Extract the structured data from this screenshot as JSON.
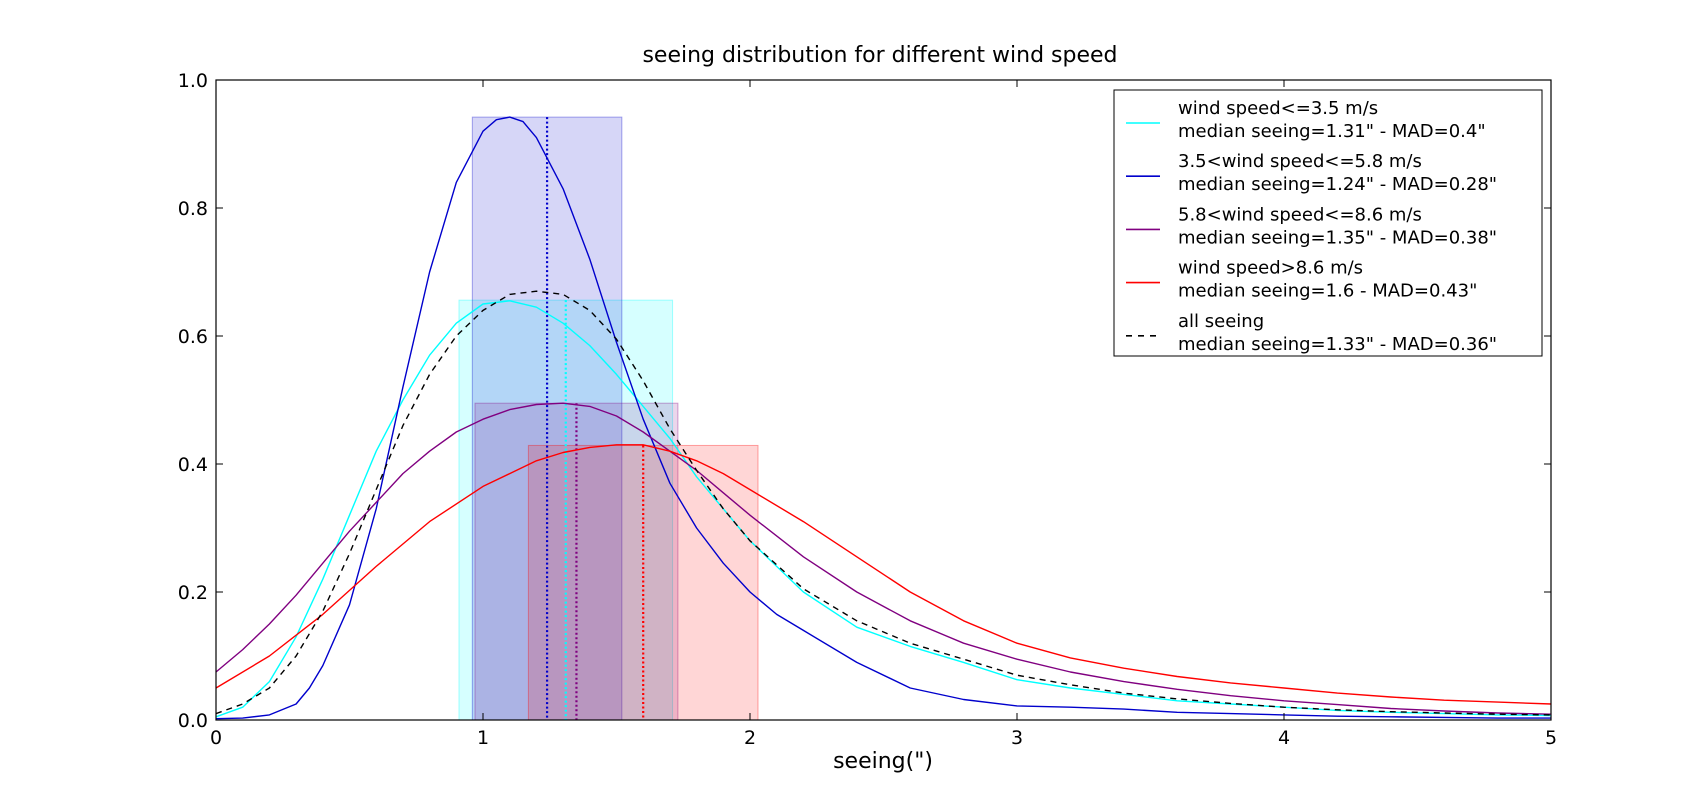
{
  "chart_data": {
    "type": "line",
    "title": "seeing distribution for different wind speed",
    "xlabel": "seeing(\")",
    "ylabel": "",
    "xlim": [
      0,
      5
    ],
    "ylim": [
      0,
      1.0
    ],
    "x_ticks": [
      "0",
      "1",
      "2",
      "3",
      "4",
      "5"
    ],
    "y_ticks": [
      "0.0",
      "0.2",
      "0.4",
      "0.6",
      "0.8",
      "1.0"
    ],
    "grid": false,
    "legend_position": "top-right",
    "series": [
      {
        "name": "wind speed<=3.5 m/s",
        "median_label": "median seeing=1.31\" - MAD=0.4\"",
        "color": "#00ffff",
        "dash": false,
        "median": 1.31,
        "band": [
          0.91,
          1.71
        ],
        "band_height": 0.656,
        "x": [
          0,
          0.1,
          0.2,
          0.3,
          0.4,
          0.5,
          0.6,
          0.7,
          0.8,
          0.9,
          1.0,
          1.1,
          1.2,
          1.3,
          1.4,
          1.5,
          1.6,
          1.7,
          1.8,
          1.9,
          2.0,
          2.2,
          2.4,
          2.6,
          2.8,
          3.0,
          3.2,
          3.4,
          3.6,
          3.8,
          4.0,
          4.2,
          4.4,
          4.6,
          4.8,
          5.0
        ],
        "y": [
          0.005,
          0.02,
          0.06,
          0.13,
          0.22,
          0.32,
          0.42,
          0.5,
          0.57,
          0.62,
          0.65,
          0.655,
          0.645,
          0.62,
          0.585,
          0.54,
          0.49,
          0.44,
          0.38,
          0.33,
          0.28,
          0.2,
          0.145,
          0.115,
          0.09,
          0.063,
          0.05,
          0.04,
          0.03,
          0.025,
          0.02,
          0.015,
          0.012,
          0.01,
          0.008,
          0.007
        ]
      },
      {
        "name": "3.5<wind speed<=5.8 m/s",
        "median_label": "median seeing=1.24\" - MAD=0.28\"",
        "color": "#0000cc",
        "dash": false,
        "median": 1.24,
        "band": [
          0.96,
          1.52
        ],
        "band_height": 0.942,
        "x": [
          0,
          0.1,
          0.2,
          0.3,
          0.35,
          0.4,
          0.5,
          0.6,
          0.7,
          0.8,
          0.9,
          1.0,
          1.05,
          1.1,
          1.15,
          1.2,
          1.3,
          1.4,
          1.5,
          1.6,
          1.7,
          1.8,
          1.9,
          2.0,
          2.1,
          2.2,
          2.4,
          2.6,
          2.8,
          3.0,
          3.2,
          3.4,
          3.6,
          3.8,
          4.0,
          4.2,
          4.4,
          4.6,
          4.8,
          5.0
        ],
        "y": [
          0.002,
          0.003,
          0.008,
          0.025,
          0.05,
          0.085,
          0.18,
          0.33,
          0.52,
          0.7,
          0.84,
          0.92,
          0.938,
          0.942,
          0.935,
          0.91,
          0.83,
          0.72,
          0.59,
          0.47,
          0.37,
          0.3,
          0.245,
          0.2,
          0.165,
          0.14,
          0.09,
          0.05,
          0.032,
          0.022,
          0.02,
          0.017,
          0.012,
          0.01,
          0.008,
          0.006,
          0.005,
          0.004,
          0.003,
          0.003
        ]
      },
      {
        "name": "5.8<wind speed<=8.6 m/s",
        "median_label": "median seeing=1.35\" - MAD=0.38\"",
        "color": "#800080",
        "dash": false,
        "median": 1.35,
        "band": [
          0.97,
          1.73
        ],
        "band_height": 0.495,
        "x": [
          0,
          0.1,
          0.2,
          0.3,
          0.4,
          0.5,
          0.6,
          0.7,
          0.8,
          0.9,
          1.0,
          1.1,
          1.2,
          1.3,
          1.4,
          1.5,
          1.6,
          1.7,
          1.8,
          1.9,
          2.0,
          2.2,
          2.4,
          2.6,
          2.8,
          3.0,
          3.2,
          3.4,
          3.6,
          3.8,
          4.0,
          4.2,
          4.4,
          4.6,
          4.8,
          5.0
        ],
        "y": [
          0.075,
          0.11,
          0.15,
          0.195,
          0.245,
          0.295,
          0.34,
          0.385,
          0.42,
          0.45,
          0.47,
          0.485,
          0.493,
          0.495,
          0.49,
          0.475,
          0.45,
          0.42,
          0.39,
          0.355,
          0.32,
          0.255,
          0.2,
          0.155,
          0.12,
          0.095,
          0.075,
          0.06,
          0.048,
          0.038,
          0.03,
          0.024,
          0.018,
          0.014,
          0.011,
          0.009
        ]
      },
      {
        "name": "wind speed>8.6 m/s",
        "median_label": "median seeing=1.6 - MAD=0.43\"",
        "color": "#ff0000",
        "dash": false,
        "median": 1.6,
        "band": [
          1.17,
          2.03
        ],
        "band_height": 0.429,
        "x": [
          0,
          0.2,
          0.4,
          0.6,
          0.8,
          1.0,
          1.1,
          1.2,
          1.3,
          1.4,
          1.5,
          1.6,
          1.7,
          1.8,
          1.9,
          2.0,
          2.2,
          2.4,
          2.6,
          2.8,
          3.0,
          3.2,
          3.4,
          3.6,
          3.8,
          4.0,
          4.2,
          4.4,
          4.6,
          4.8,
          5.0
        ],
        "y": [
          0.05,
          0.1,
          0.165,
          0.24,
          0.31,
          0.365,
          0.385,
          0.405,
          0.418,
          0.426,
          0.43,
          0.43,
          0.42,
          0.405,
          0.385,
          0.36,
          0.31,
          0.255,
          0.2,
          0.155,
          0.12,
          0.097,
          0.081,
          0.068,
          0.058,
          0.05,
          0.042,
          0.036,
          0.031,
          0.028,
          0.025
        ]
      },
      {
        "name": "all seeing",
        "median_label": "median seeing=1.33\" - MAD=0.36\"",
        "color": "#000000",
        "dash": true,
        "median": null,
        "band": null,
        "band_height": null,
        "x": [
          0,
          0.1,
          0.2,
          0.3,
          0.4,
          0.5,
          0.6,
          0.7,
          0.8,
          0.9,
          1.0,
          1.1,
          1.2,
          1.3,
          1.4,
          1.5,
          1.6,
          1.7,
          1.8,
          1.9,
          2.0,
          2.2,
          2.4,
          2.6,
          2.8,
          3.0,
          3.2,
          3.4,
          3.6,
          3.8,
          4.0,
          4.2,
          4.4,
          4.6,
          4.8,
          5.0
        ],
        "y": [
          0.01,
          0.025,
          0.05,
          0.1,
          0.17,
          0.26,
          0.36,
          0.46,
          0.54,
          0.6,
          0.64,
          0.665,
          0.67,
          0.665,
          0.64,
          0.595,
          0.53,
          0.455,
          0.39,
          0.33,
          0.28,
          0.205,
          0.155,
          0.12,
          0.095,
          0.07,
          0.055,
          0.042,
          0.033,
          0.026,
          0.02,
          0.016,
          0.013,
          0.011,
          0.009,
          0.008
        ]
      }
    ]
  }
}
